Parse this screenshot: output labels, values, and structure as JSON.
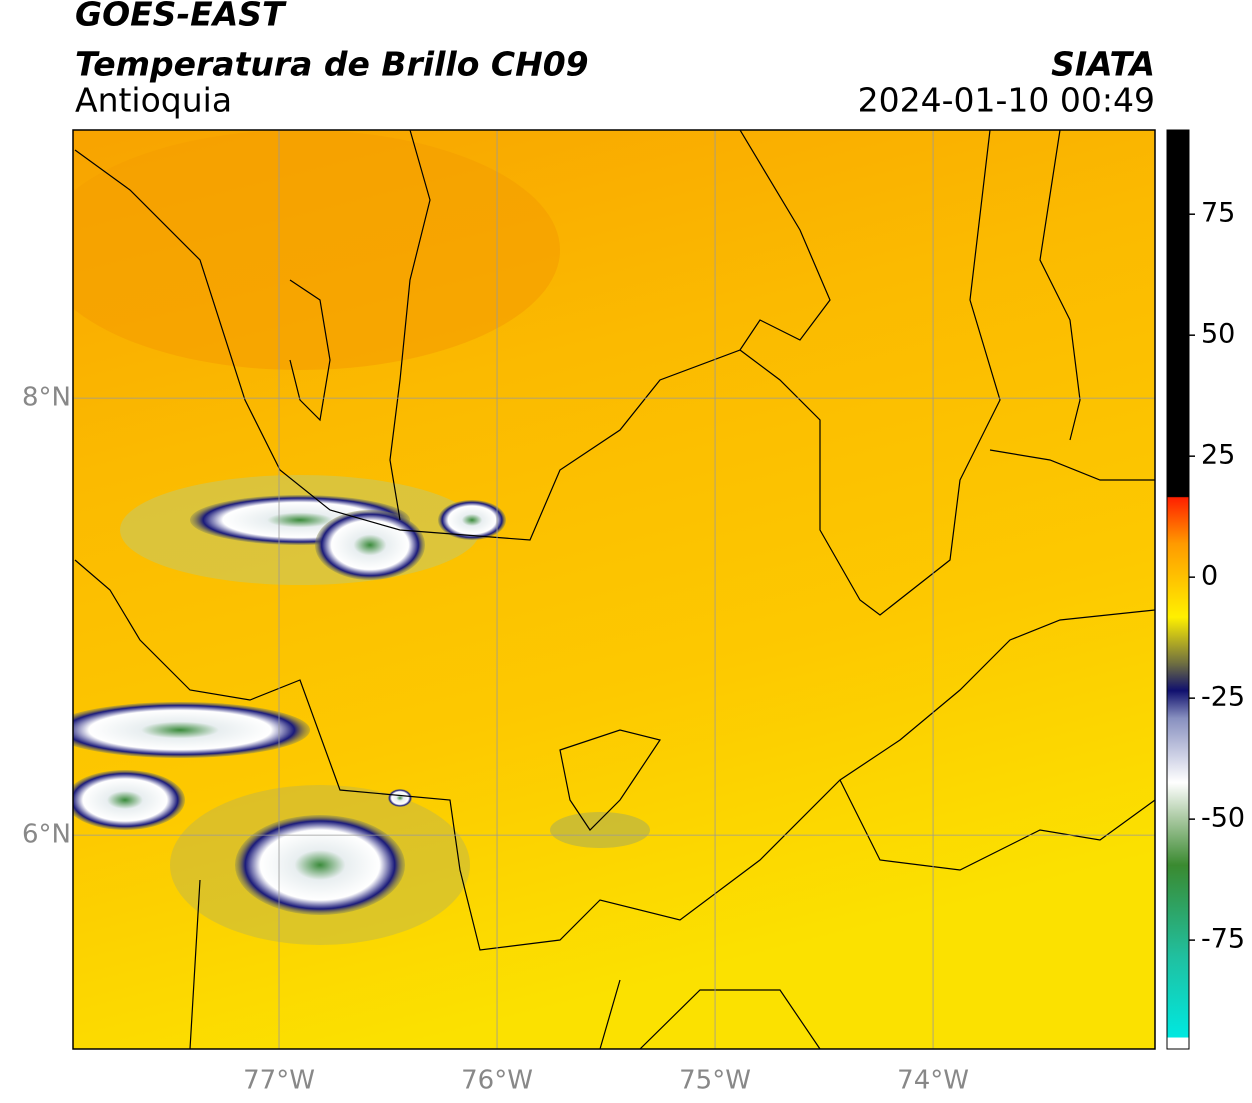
{
  "header": {
    "source": "GOES-EAST",
    "title": "Temperatura de Brillo CH09",
    "agency": "SIATA",
    "region": "Antioquia",
    "datetime": "2024-01-10 00:49"
  },
  "map": {
    "lonlim": [
      -77.945,
      -72.982
    ],
    "latlim": [
      5.021,
      9.227
    ],
    "lon_ticks": [
      {
        "value": -77,
        "label": "77°W"
      },
      {
        "value": -76,
        "label": "76°W"
      },
      {
        "value": -75,
        "label": "75°W"
      },
      {
        "value": -74,
        "label": "74°W"
      }
    ],
    "lat_ticks": [
      {
        "value": 8,
        "label": "8°N"
      },
      {
        "value": 6,
        "label": "6°N"
      }
    ],
    "grid": true
  },
  "colorbar": {
    "lim": [
      -97.5,
      92.4
    ],
    "ticks": [
      75,
      50,
      25,
      0,
      -25,
      -50,
      -75
    ]
  }
}
